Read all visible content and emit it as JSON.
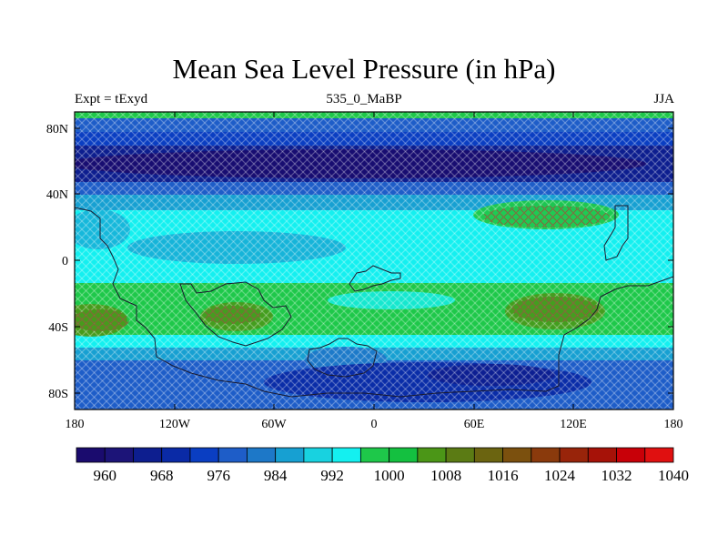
{
  "title": "Mean Sea Level Pressure (in hPa)",
  "left_label": "Expt = tExyd",
  "center_label": "535_0_MaBP",
  "right_label": "JJA",
  "x_ticks": [
    "180",
    "120W",
    "60W",
    "0",
    "60E",
    "120E",
    "180"
  ],
  "y_ticks": [
    "80N",
    "40N",
    "0",
    "40S",
    "80S"
  ],
  "colorbar": {
    "colors": [
      "#1a0b6e",
      "#1c1478",
      "#0d1e8f",
      "#0a2aa6",
      "#0a3ec2",
      "#1e5dc8",
      "#1d78c8",
      "#17a0d2",
      "#18d2e0",
      "#14f0f0",
      "#1ec84a",
      "#14c040",
      "#4b9617",
      "#5b7b14",
      "#6b6410",
      "#7b500e",
      "#8a3a0c",
      "#98240a",
      "#a61208",
      "#c80008",
      "#e01010"
    ],
    "labels": [
      "960",
      "968",
      "976",
      "984",
      "992",
      "1000",
      "1008",
      "1016",
      "1024",
      "1032",
      "1040"
    ]
  },
  "map_data": {
    "type": "filled-contour",
    "variable": "mean sea level pressure",
    "units": "hPa",
    "lon_range": [
      -180,
      180
    ],
    "lat_range": [
      -90,
      90
    ],
    "zonal_pattern": [
      {
        "lat": 85,
        "value_hpa": 988
      },
      {
        "lat": 60,
        "value_hpa": 962
      },
      {
        "lat": 40,
        "value_hpa": 980
      },
      {
        "lat": 20,
        "value_hpa": 1000
      },
      {
        "lat": 0,
        "value_hpa": 996
      },
      {
        "lat": -35,
        "value_hpa": 1010
      },
      {
        "lat": -55,
        "value_hpa": 990
      },
      {
        "lat": -75,
        "value_hpa": 970
      }
    ]
  }
}
